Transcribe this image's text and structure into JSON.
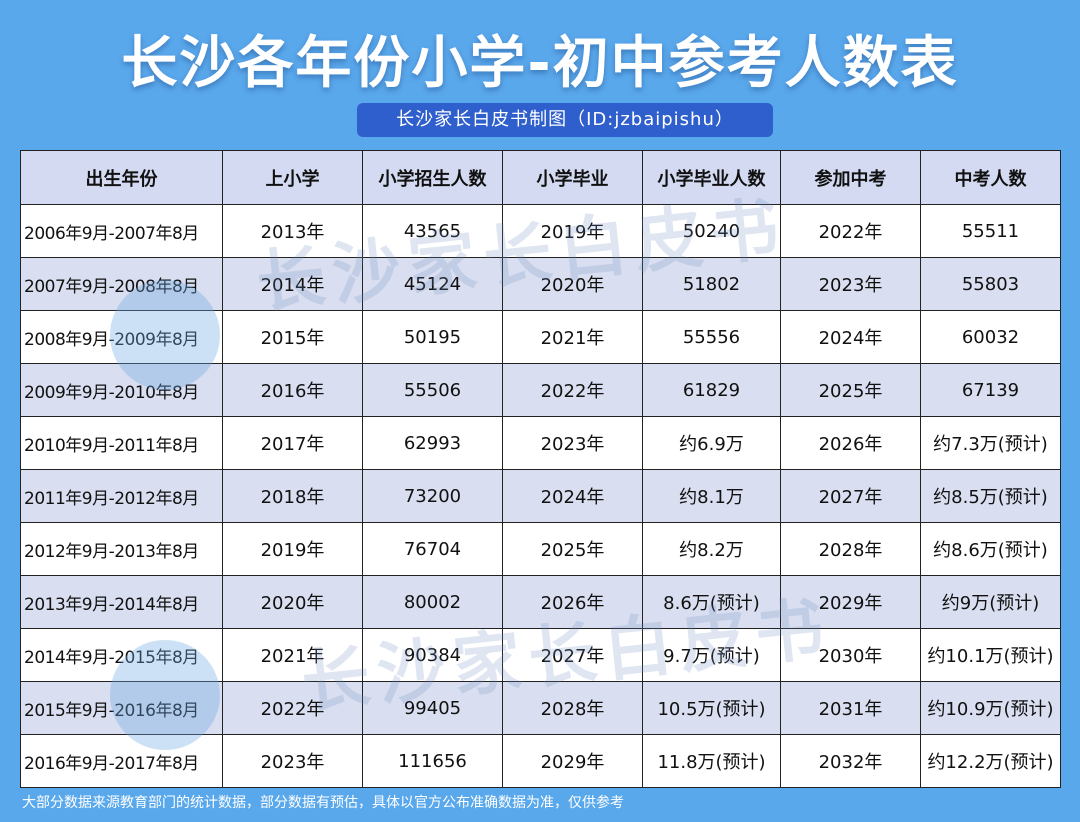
{
  "title": "长沙各年份小学-初中参考人数表",
  "subtitle": "长沙家长白皮书制图（ID:jzbaipishu）",
  "watermark": "长沙家长白皮书",
  "headers": [
    "出生年份",
    "上小学",
    "小学招生人数",
    "小学毕业",
    "小学毕业人数",
    "参加中考",
    "中考人数"
  ],
  "rows": [
    [
      "2006年9月-2007年8月",
      "2013年",
      "43565",
      "2019年",
      "50240",
      "2022年",
      "55511"
    ],
    [
      "2007年9月-2008年8月",
      "2014年",
      "45124",
      "2020年",
      "51802",
      "2023年",
      "55803"
    ],
    [
      "2008年9月-2009年8月",
      "2015年",
      "50195",
      "2021年",
      "55556",
      "2024年",
      "60032"
    ],
    [
      "2009年9月-2010年8月",
      "2016年",
      "55506",
      "2022年",
      "61829",
      "2025年",
      "67139"
    ],
    [
      "2010年9月-2011年8月",
      "2017年",
      "62993",
      "2023年",
      "约6.9万",
      "2026年",
      "约7.3万(预计)"
    ],
    [
      "2011年9月-2012年8月",
      "2018年",
      "73200",
      "2024年",
      "约8.1万",
      "2027年",
      "约8.5万(预计)"
    ],
    [
      "2012年9月-2013年8月",
      "2019年",
      "76704",
      "2025年",
      "约8.2万",
      "2028年",
      "约8.6万(预计)"
    ],
    [
      "2013年9月-2014年8月",
      "2020年",
      "80002",
      "2026年",
      "8.6万(预计)",
      "2029年",
      "约9万(预计)"
    ],
    [
      "2014年9月-2015年8月",
      "2021年",
      "90384",
      "2027年",
      "9.7万(预计)",
      "2030年",
      "约10.1万(预计)"
    ],
    [
      "2015年9月-2016年8月",
      "2022年",
      "99405",
      "2028年",
      "10.5万(预计)",
      "2031年",
      "约10.9万(预计)"
    ],
    [
      "2016年9月-2017年8月",
      "2023年",
      "111656",
      "2029年",
      "11.8万(预计)",
      "2032年",
      "约12.2万(预计)"
    ]
  ],
  "footer": "大部分数据来源教育部门的统计数据，部分数据有预估，具体以官方公布准确数据为准，仅供参考",
  "colors": {
    "background": "#5aa8ec",
    "subtitle_bg": "#2f5fcc",
    "header_bg": "#d3daf2",
    "row_alt_bg": "#d9def0"
  }
}
